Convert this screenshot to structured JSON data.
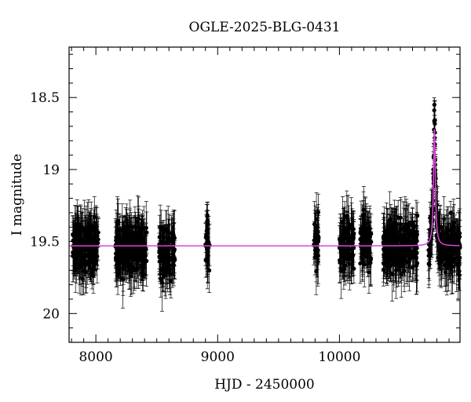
{
  "chart_data": {
    "type": "scatter",
    "title": "OGLE-2025-BLG-0431",
    "xlabel": "HJD - 2450000",
    "ylabel": "I magnitude",
    "xlim": [
      7780,
      10990
    ],
    "ylim": [
      20.2,
      18.15
    ],
    "y_inverted": true,
    "grid": false,
    "x_ticks": [
      8000,
      9000,
      10000
    ],
    "x_tick_labels": [
      "8000",
      "9000",
      "10000"
    ],
    "y_ticks": [
      18.5,
      19,
      19.5,
      20
    ],
    "y_tick_labels": [
      "18.5",
      "19",
      "19.5",
      "20"
    ],
    "observations": {
      "marker_color": "#000000",
      "errorbar_color": "#000000",
      "seasons": [
        {
          "x_start": 7810,
          "x_end": 8020,
          "mean_mag": 19.53
        },
        {
          "x_start": 8160,
          "x_end": 8420,
          "mean_mag": 19.55
        },
        {
          "x_start": 8520,
          "x_end": 8650,
          "mean_mag": 19.56
        },
        {
          "x_start": 8900,
          "x_end": 8935,
          "mean_mag": 19.52
        },
        {
          "x_start": 9790,
          "x_end": 9830,
          "mean_mag": 19.5
        },
        {
          "x_start": 10000,
          "x_end": 10120,
          "mean_mag": 19.52
        },
        {
          "x_start": 10170,
          "x_end": 10260,
          "mean_mag": 19.5
        },
        {
          "x_start": 10360,
          "x_end": 10640,
          "mean_mag": 19.52
        },
        {
          "x_start": 10730,
          "x_end": 10990,
          "mean_mag": 19.55
        }
      ],
      "peak": {
        "x": 10780,
        "mag": 18.55
      }
    },
    "model": {
      "color": "#e040e0",
      "baseline_mag": 19.53,
      "peak_x": 10780,
      "peak_mag": 18.72,
      "tE": 9
    }
  }
}
